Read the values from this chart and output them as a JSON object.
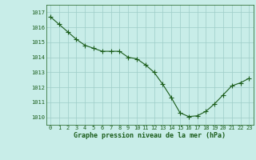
{
  "x": [
    0,
    1,
    2,
    3,
    4,
    5,
    6,
    7,
    8,
    9,
    10,
    11,
    12,
    13,
    14,
    15,
    16,
    17,
    18,
    19,
    20,
    21,
    22,
    23
  ],
  "y": [
    1016.7,
    1016.2,
    1015.7,
    1015.2,
    1014.8,
    1014.6,
    1014.4,
    1014.4,
    1014.4,
    1014.0,
    1013.9,
    1013.5,
    1013.0,
    1012.2,
    1011.3,
    1010.3,
    1010.05,
    1010.1,
    1010.4,
    1010.9,
    1011.5,
    1012.1,
    1012.3,
    1012.6
  ],
  "line_color": "#1a5c1a",
  "marker": "+",
  "marker_size": 4,
  "marker_color": "#1a5c1a",
  "background_color": "#c8ede8",
  "grid_color": "#9ecdc8",
  "xlabel": "Graphe pression niveau de la mer (hPa)",
  "xlabel_color": "#1a5c1a",
  "tick_color": "#1a5c1a",
  "ylim": [
    1009.5,
    1017.5
  ],
  "xlim": [
    -0.5,
    23.5
  ],
  "yticks": [
    1010,
    1011,
    1012,
    1013,
    1014,
    1015,
    1016,
    1017
  ],
  "xtick_labels": [
    "0",
    "1",
    "2",
    "3",
    "4",
    "5",
    "6",
    "7",
    "8",
    "9",
    "10",
    "11",
    "12",
    "13",
    "14",
    "15",
    "16",
    "17",
    "18",
    "19",
    "20",
    "21",
    "22",
    "23"
  ],
  "line_width": 0.8,
  "tick_fontsize": 5.0,
  "xlabel_fontsize": 6.0
}
